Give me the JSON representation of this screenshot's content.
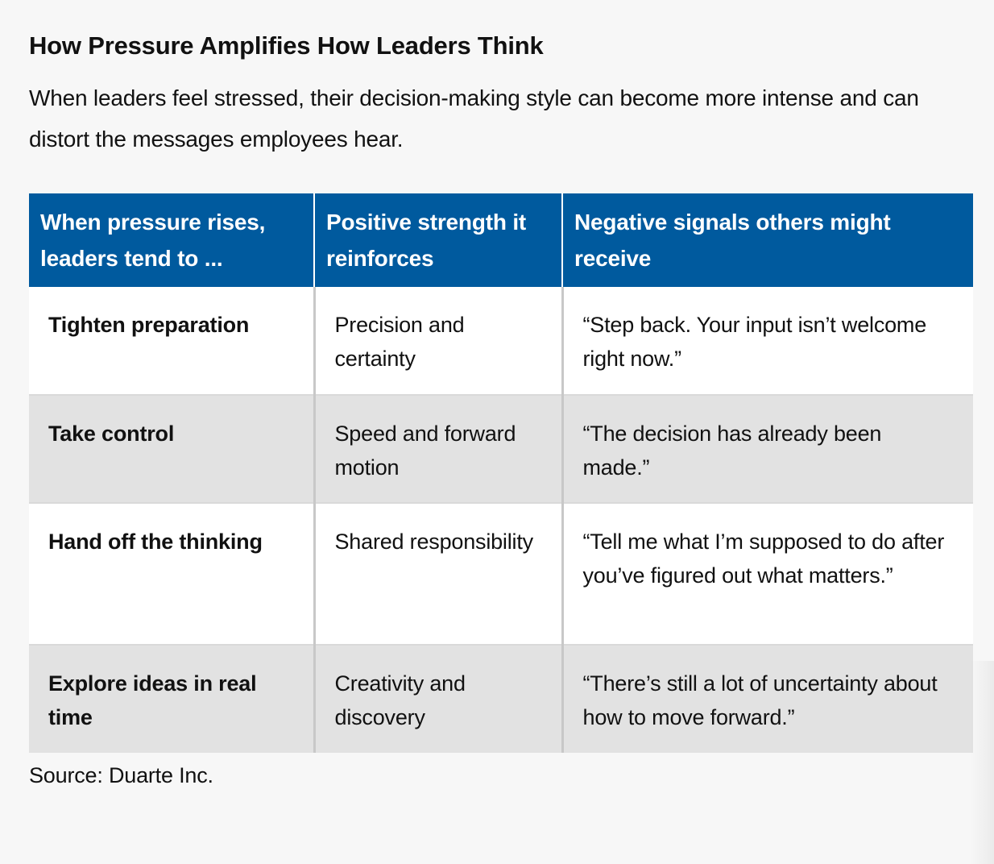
{
  "title": "How Pressure Amplifies How Leaders Think",
  "subtitle": "When leaders feel stressed, their decision-making style can become more intense and can distort the messages employees hear.",
  "table": {
    "headers": [
      "When pressure rises, leaders tend to ...",
      "Positive strength it reinforces",
      "Negative signals others might receive"
    ],
    "rows": [
      {
        "behavior": "Tighten preparation",
        "strength": "Precision and certainty",
        "signal": "“Step back. Your input isn’t welcome right now.”"
      },
      {
        "behavior": "Take control",
        "strength": "Speed and forward motion",
        "signal": "“The decision has already been made.”"
      },
      {
        "behavior": "Hand off the thinking",
        "strength": "Shared responsibility",
        "signal": "“Tell me what I’m supposed to do after you’ve figured out what matters.”"
      },
      {
        "behavior": "Explore ideas in real time",
        "strength": "Creativity and discovery",
        "signal": "“There’s still a lot of uncertainty about how to move forward.”"
      }
    ],
    "colors": {
      "header_bg": "#005a9e",
      "header_text": "#ffffff",
      "row_odd": "#ffffff",
      "row_even": "#e2e2e2"
    }
  },
  "source": "Source: Duarte Inc."
}
